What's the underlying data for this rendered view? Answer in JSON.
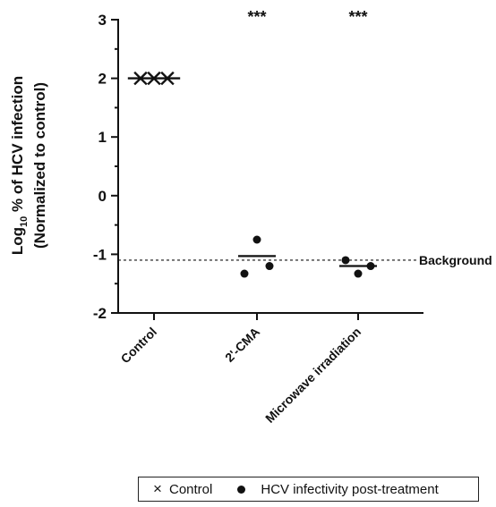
{
  "chart_data": {
    "type": "scatter",
    "ylabel_line1_prefix": "Log",
    "ylabel_line1_sub": "10",
    "ylabel_line1_suffix": " % of HCV infection",
    "ylabel_line2": "(Normalized to control)",
    "ylim": [
      -2,
      3
    ],
    "yticks": [
      "3",
      "2",
      "1",
      "0",
      "-1",
      "-2"
    ],
    "categories": [
      "Control",
      "2'-CMA",
      "Microwave irradiation"
    ],
    "significance": [
      "",
      "***",
      "***"
    ],
    "background": {
      "value": -1.1,
      "label": "Background"
    },
    "control_points": [
      {
        "category": 0,
        "offset": -1,
        "y": 2.0
      },
      {
        "category": 0,
        "offset": 0,
        "y": 2.0
      },
      {
        "category": 0,
        "offset": 1,
        "y": 2.0
      }
    ],
    "treatment_points": [
      {
        "category": 1,
        "offset": 0,
        "y": -0.75
      },
      {
        "category": 1,
        "offset": -1,
        "y": -1.33
      },
      {
        "category": 1,
        "offset": 1,
        "y": -1.2
      },
      {
        "category": 2,
        "offset": -1,
        "y": -1.1
      },
      {
        "category": 2,
        "offset": 0,
        "y": -1.33
      },
      {
        "category": 2,
        "offset": 1,
        "y": -1.2
      }
    ],
    "means": [
      {
        "category": 1,
        "y": -1.03
      },
      {
        "category": 2,
        "y": -1.2
      }
    ],
    "legend": [
      {
        "symbol": "×",
        "label": "Control"
      },
      {
        "symbol": "dot",
        "label": "HCV infectivity post-treatment"
      }
    ]
  }
}
